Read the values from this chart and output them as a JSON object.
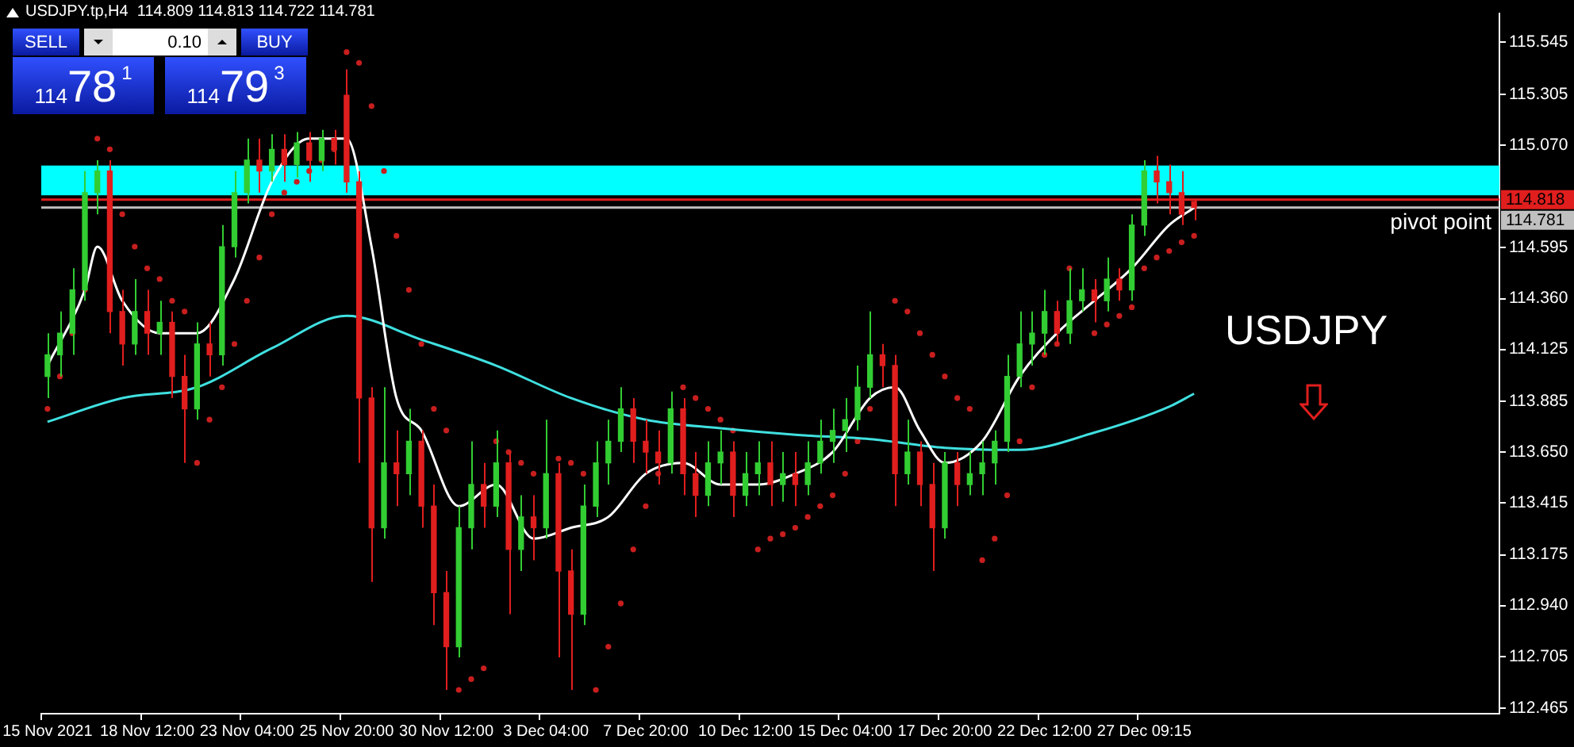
{
  "chart_data": {
    "type": "candlestick",
    "title": "USDJPY.tp,H4  114.809 114.813 114.722 114.781",
    "categories": [
      "15 Nov 2021",
      null,
      null,
      null,
      null,
      null,
      null,
      null,
      "18 Nov 12:00",
      null,
      null,
      null,
      null,
      null,
      null,
      null,
      "23 Nov 04:00",
      null,
      null,
      null,
      null,
      null,
      null,
      null,
      "25 Nov 20:00",
      null,
      null,
      null,
      null,
      null,
      null,
      null,
      "30 Nov 12:00",
      null,
      null,
      null,
      null,
      null,
      null,
      null,
      "3 Dec 04:00",
      null,
      null,
      null,
      null,
      null,
      null,
      null,
      "7 Dec 20:00",
      null,
      null,
      null,
      null,
      null,
      null,
      null,
      "10 Dec 12:00",
      null,
      null,
      null,
      null,
      null,
      null,
      null,
      "15 Dec 04:00",
      null,
      null,
      null,
      null,
      null,
      null,
      null,
      "17 Dec 20:00",
      null,
      null,
      null,
      null,
      null,
      null,
      null,
      "22 Dec 12:00",
      null,
      null,
      null,
      null,
      null,
      null,
      null,
      "27 Dec 09:15",
      null,
      null,
      null,
      null,
      null,
      null,
      null,
      null,
      null,
      null,
      null,
      null,
      null,
      null,
      null,
      null,
      null,
      null,
      null,
      null,
      null,
      null,
      null,
      null,
      null,
      null,
      null,
      null
    ],
    "ohlc": [
      [
        114.0,
        114.2,
        113.9,
        114.1
      ],
      [
        114.1,
        114.3,
        114.0,
        114.2
      ],
      [
        114.2,
        114.5,
        114.1,
        114.4
      ],
      [
        114.4,
        114.95,
        114.35,
        114.85
      ],
      [
        114.85,
        115.0,
        114.75,
        114.95
      ],
      [
        114.95,
        115.0,
        114.2,
        114.3
      ],
      [
        114.3,
        114.4,
        114.05,
        114.15
      ],
      [
        114.15,
        114.45,
        114.1,
        114.3
      ],
      [
        114.3,
        114.4,
        114.1,
        114.2
      ],
      [
        114.2,
        114.35,
        114.1,
        114.25
      ],
      [
        114.25,
        114.3,
        113.9,
        114.0
      ],
      [
        114.0,
        114.1,
        113.6,
        113.85
      ],
      [
        113.85,
        114.25,
        113.8,
        114.15
      ],
      [
        114.15,
        114.25,
        114.0,
        114.1
      ],
      [
        114.1,
        114.7,
        114.05,
        114.6
      ],
      [
        114.6,
        114.95,
        114.55,
        114.85
      ],
      [
        114.85,
        115.1,
        114.8,
        115.0
      ],
      [
        115.0,
        115.1,
        114.85,
        114.95
      ],
      [
        114.95,
        115.12,
        114.9,
        115.05
      ],
      [
        115.05,
        115.12,
        114.9,
        114.98
      ],
      [
        114.98,
        115.13,
        114.92,
        115.08
      ],
      [
        115.08,
        115.13,
        114.9,
        115.0
      ],
      [
        115.0,
        115.14,
        114.95,
        115.1
      ],
      [
        115.1,
        115.14,
        114.98,
        115.05
      ],
      [
        115.3,
        115.42,
        114.85,
        114.9
      ],
      [
        114.9,
        114.95,
        113.6,
        113.9
      ],
      [
        113.9,
        113.95,
        113.05,
        113.3
      ],
      [
        113.3,
        113.95,
        113.25,
        113.6
      ],
      [
        113.6,
        113.75,
        113.4,
        113.55
      ],
      [
        113.55,
        113.85,
        113.45,
        113.7
      ],
      [
        113.7,
        113.75,
        113.3,
        113.4
      ],
      [
        113.4,
        113.5,
        112.85,
        113.0
      ],
      [
        113.0,
        113.1,
        112.55,
        112.75
      ],
      [
        112.75,
        113.4,
        112.7,
        113.3
      ],
      [
        113.3,
        113.7,
        113.2,
        113.5
      ],
      [
        113.5,
        113.6,
        113.3,
        113.4
      ],
      [
        113.4,
        113.75,
        113.35,
        113.6
      ],
      [
        113.6,
        113.65,
        112.9,
        113.2
      ],
      [
        113.2,
        113.45,
        113.1,
        113.35
      ],
      [
        113.35,
        113.45,
        113.15,
        113.3
      ],
      [
        113.3,
        113.8,
        113.25,
        113.55
      ],
      [
        113.55,
        113.6,
        112.7,
        113.1
      ],
      [
        113.1,
        113.2,
        112.55,
        112.9
      ],
      [
        112.9,
        113.5,
        112.85,
        113.4
      ],
      [
        113.4,
        113.7,
        113.35,
        113.6
      ],
      [
        113.6,
        113.8,
        113.5,
        113.7
      ],
      [
        113.7,
        113.95,
        113.65,
        113.85
      ],
      [
        113.85,
        113.9,
        113.6,
        113.7
      ],
      [
        113.7,
        113.8,
        113.55,
        113.65
      ],
      [
        113.65,
        113.75,
        113.5,
        113.6
      ],
      [
        113.6,
        113.93,
        113.55,
        113.85
      ],
      [
        113.85,
        113.9,
        113.45,
        113.55
      ],
      [
        113.55,
        113.65,
        113.35,
        113.45
      ],
      [
        113.45,
        113.7,
        113.4,
        113.6
      ],
      [
        113.6,
        113.75,
        113.5,
        113.65
      ],
      [
        113.65,
        113.7,
        113.35,
        113.45
      ],
      [
        113.45,
        113.65,
        113.4,
        113.55
      ],
      [
        113.55,
        113.7,
        113.45,
        113.6
      ],
      [
        113.6,
        113.7,
        113.4,
        113.5
      ],
      [
        113.5,
        113.65,
        113.42,
        113.55
      ],
      [
        113.55,
        113.65,
        113.4,
        113.5
      ],
      [
        113.5,
        113.7,
        113.45,
        113.6
      ],
      [
        113.6,
        113.8,
        113.55,
        113.7
      ],
      [
        113.7,
        113.85,
        113.6,
        113.75
      ],
      [
        113.75,
        113.9,
        113.65,
        113.8
      ],
      [
        113.8,
        114.05,
        113.75,
        113.95
      ],
      [
        113.95,
        114.3,
        113.9,
        114.1
      ],
      [
        114.1,
        114.15,
        113.95,
        114.05
      ],
      [
        114.05,
        114.1,
        113.4,
        113.55
      ],
      [
        113.55,
        113.8,
        113.5,
        113.65
      ],
      [
        113.65,
        113.7,
        113.4,
        113.5
      ],
      [
        113.5,
        113.6,
        113.1,
        113.3
      ],
      [
        113.3,
        113.65,
        113.25,
        113.6
      ],
      [
        113.6,
        113.65,
        113.4,
        113.5
      ],
      [
        113.5,
        113.65,
        113.45,
        113.55
      ],
      [
        113.55,
        113.7,
        113.45,
        113.6
      ],
      [
        113.6,
        113.75,
        113.5,
        113.7
      ],
      [
        113.7,
        114.1,
        113.65,
        114.0
      ],
      [
        114.0,
        114.3,
        113.95,
        114.15
      ],
      [
        114.15,
        114.3,
        114.05,
        114.2
      ],
      [
        114.2,
        114.4,
        114.1,
        114.3
      ],
      [
        114.3,
        114.35,
        114.15,
        114.2
      ],
      [
        114.2,
        114.5,
        114.15,
        114.35
      ],
      [
        114.35,
        114.5,
        114.3,
        114.4
      ],
      [
        114.4,
        114.45,
        114.25,
        114.35
      ],
      [
        114.35,
        114.55,
        114.3,
        114.45
      ],
      [
        114.45,
        114.5,
        114.35,
        114.4
      ],
      [
        114.4,
        114.75,
        114.35,
        114.7
      ],
      [
        114.7,
        115.0,
        114.65,
        114.95
      ],
      [
        114.95,
        115.02,
        114.8,
        114.9
      ],
      [
        114.9,
        114.98,
        114.75,
        114.85
      ],
      [
        114.85,
        114.95,
        114.7,
        114.75
      ],
      [
        114.809,
        114.813,
        114.722,
        114.781
      ],
      null,
      null,
      null,
      null,
      null,
      null,
      null,
      null,
      null,
      null,
      null,
      null,
      null,
      null,
      null,
      null,
      null,
      null,
      null,
      null,
      null,
      null,
      null,
      null
    ],
    "colors": [
      "#32cd32",
      "#32cd32",
      "#32cd32",
      "#32cd32",
      "#32cd32",
      "#e01e1e",
      "#e01e1e",
      "#32cd32",
      "#e01e1e",
      "#32cd32",
      "#e01e1e",
      "#e01e1e",
      "#32cd32",
      "#e01e1e",
      "#32cd32",
      "#32cd32",
      "#32cd32",
      "#e01e1e",
      "#32cd32",
      "#e01e1e",
      "#32cd32",
      "#e01e1e",
      "#32cd32",
      "#e01e1e",
      "#e01e1e",
      "#e01e1e",
      "#e01e1e",
      "#32cd32",
      "#e01e1e",
      "#32cd32",
      "#e01e1e",
      "#e01e1e",
      "#e01e1e",
      "#32cd32",
      "#32cd32",
      "#e01e1e",
      "#32cd32",
      "#e01e1e",
      "#32cd32",
      "#e01e1e",
      "#32cd32",
      "#e01e1e",
      "#e01e1e",
      "#32cd32",
      "#32cd32",
      "#32cd32",
      "#32cd32",
      "#e01e1e",
      "#e01e1e",
      "#e01e1e",
      "#32cd32",
      "#e01e1e",
      "#e01e1e",
      "#32cd32",
      "#32cd32",
      "#e01e1e",
      "#32cd32",
      "#32cd32",
      "#e01e1e",
      "#32cd32",
      "#e01e1e",
      "#32cd32",
      "#32cd32",
      "#32cd32",
      "#32cd32",
      "#32cd32",
      "#32cd32",
      "#e01e1e",
      "#e01e1e",
      "#32cd32",
      "#e01e1e",
      "#e01e1e",
      "#32cd32",
      "#e01e1e",
      "#32cd32",
      "#32cd32",
      "#32cd32",
      "#32cd32",
      "#32cd32",
      "#32cd32",
      "#32cd32",
      "#e01e1e",
      "#32cd32",
      "#32cd32",
      "#e01e1e",
      "#32cd32",
      "#e01e1e",
      "#32cd32",
      "#32cd32",
      "#e01e1e",
      "#e01e1e",
      "#e01e1e",
      "#e01e1e",
      null,
      null,
      null,
      null,
      null,
      null,
      null,
      null,
      null,
      null,
      null,
      null,
      null,
      null,
      null,
      null,
      null,
      null,
      null,
      null,
      null,
      null,
      null,
      null
    ],
    "series": [
      {
        "type": "line",
        "color": "#ffffff",
        "marker": "none",
        "values": [
          114.05,
          null,
          null,
          114.4,
          114.6,
          null,
          114.35,
          null,
          null,
          114.2,
          null,
          null,
          114.2,
          null,
          null,
          114.45,
          null,
          null,
          114.9,
          null,
          null,
          115.1,
          null,
          null,
          115.1,
          null,
          114.6,
          null,
          113.9,
          null,
          113.75,
          null,
          null,
          113.4,
          null,
          null,
          113.5,
          null,
          null,
          113.25,
          null,
          null,
          113.3,
          null,
          null,
          113.35,
          null,
          null,
          113.55,
          null,
          null,
          113.6,
          null,
          null,
          113.5,
          null,
          null,
          113.5,
          null,
          null,
          113.55,
          null,
          null,
          113.65,
          null,
          null,
          113.9,
          null,
          113.95,
          null,
          113.75,
          null,
          113.6,
          null,
          null,
          113.7,
          null,
          null,
          114.0,
          null,
          null,
          114.2,
          null,
          null,
          114.35,
          null,
          null,
          114.5,
          null,
          null,
          114.7,
          null,
          114.78,
          null,
          null,
          null,
          null,
          null,
          null,
          null,
          null,
          null,
          null,
          null,
          null,
          null,
          null,
          null,
          null,
          null,
          null,
          null,
          null,
          null,
          null,
          null,
          null
        ]
      },
      {
        "type": "line",
        "color": "#40e0e0",
        "marker": "none",
        "values": [
          113.79,
          null,
          null,
          null,
          null,
          null,
          113.9,
          null,
          null,
          null,
          null,
          null,
          113.95,
          null,
          null,
          null,
          null,
          null,
          114.13,
          null,
          null,
          null,
          null,
          null,
          114.28,
          null,
          null,
          null,
          null,
          null,
          114.17,
          null,
          null,
          null,
          null,
          null,
          114.05,
          null,
          null,
          null,
          null,
          null,
          113.9,
          null,
          null,
          null,
          null,
          null,
          113.8,
          null,
          null,
          null,
          null,
          null,
          113.76,
          null,
          null,
          null,
          null,
          null,
          113.73,
          null,
          null,
          null,
          null,
          null,
          113.71,
          null,
          null,
          null,
          null,
          null,
          113.67,
          null,
          null,
          null,
          null,
          null,
          113.66,
          null,
          null,
          null,
          null,
          null,
          113.74,
          null,
          null,
          null,
          null,
          null,
          113.86,
          null,
          113.92,
          null,
          null,
          null,
          null,
          null,
          null,
          null,
          null,
          null,
          null,
          null,
          null,
          null,
          null,
          null,
          null,
          null,
          null,
          null,
          null,
          null,
          null,
          null,
          null
        ]
      },
      {
        "type": "scatter",
        "color": "#c81e1e",
        "marker": "circle",
        "values": [
          113.85,
          114.0,
          114.2,
          114.4,
          115.1,
          115.05,
          114.75,
          114.6,
          114.5,
          114.45,
          114.35,
          114.3,
          113.6,
          113.8,
          113.95,
          114.15,
          114.35,
          114.55,
          114.75,
          114.85,
          114.9,
          114.95,
          115.0,
          115.05,
          115.5,
          115.45,
          115.25,
          114.95,
          114.65,
          114.4,
          114.15,
          113.85,
          113.75,
          112.55,
          112.6,
          112.65,
          113.7,
          113.65,
          113.6,
          113.55,
          null,
          113.62,
          113.6,
          113.55,
          112.55,
          112.75,
          112.95,
          113.2,
          113.4,
          113.55,
          null,
          113.95,
          113.9,
          113.85,
          113.8,
          113.75,
          null,
          113.2,
          113.25,
          113.27,
          113.3,
          113.35,
          113.4,
          113.45,
          113.55,
          113.7,
          113.85,
          null,
          114.35,
          114.3,
          114.2,
          114.1,
          114.0,
          113.9,
          113.85,
          113.15,
          113.25,
          113.45,
          113.7,
          113.95,
          114.1,
          114.15,
          114.5,
          null,
          114.2,
          114.24,
          114.28,
          114.32,
          114.5,
          114.55,
          114.58,
          114.62,
          114.65,
          null,
          null,
          null,
          null,
          null,
          null,
          null,
          null,
          null,
          null,
          null,
          null,
          null,
          null,
          null,
          null,
          null,
          null,
          null,
          null,
          null,
          null,
          null,
          null
        ]
      }
    ],
    "ylim": [
      112.44,
      115.68
    ],
    "yticks": [
      115.545,
      115.305,
      {
        "value": 115.07,
        "label": "115.070"
      },
      114.595,
      {
        "value": 114.36,
        "label": "114.360"
      },
      114.125,
      113.885,
      {
        "value": 113.65,
        "label": "113.650"
      },
      113.415,
      113.175,
      {
        "value": 112.94,
        "label": "112.940"
      },
      112.705,
      112.465
    ],
    "bands": [
      {
        "axis": "y",
        "from": 114.838,
        "to": 114.975,
        "color": "#00ffff"
      }
    ],
    "ref_lines": [
      {
        "axis": "y",
        "value": 114.818,
        "label": "114.818",
        "color": "#e01e1e"
      },
      {
        "axis": "y",
        "value": 114.781,
        "label": "114.781",
        "color": "#c0c0c0"
      }
    ],
    "annotations": [
      {
        "text": "pivot point",
        "y": 114.781
      },
      "USDJPY",
      "SELL",
      "0.10",
      "BUY",
      "11478$^{1}$",
      "11479$^{3}$"
    ]
  }
}
